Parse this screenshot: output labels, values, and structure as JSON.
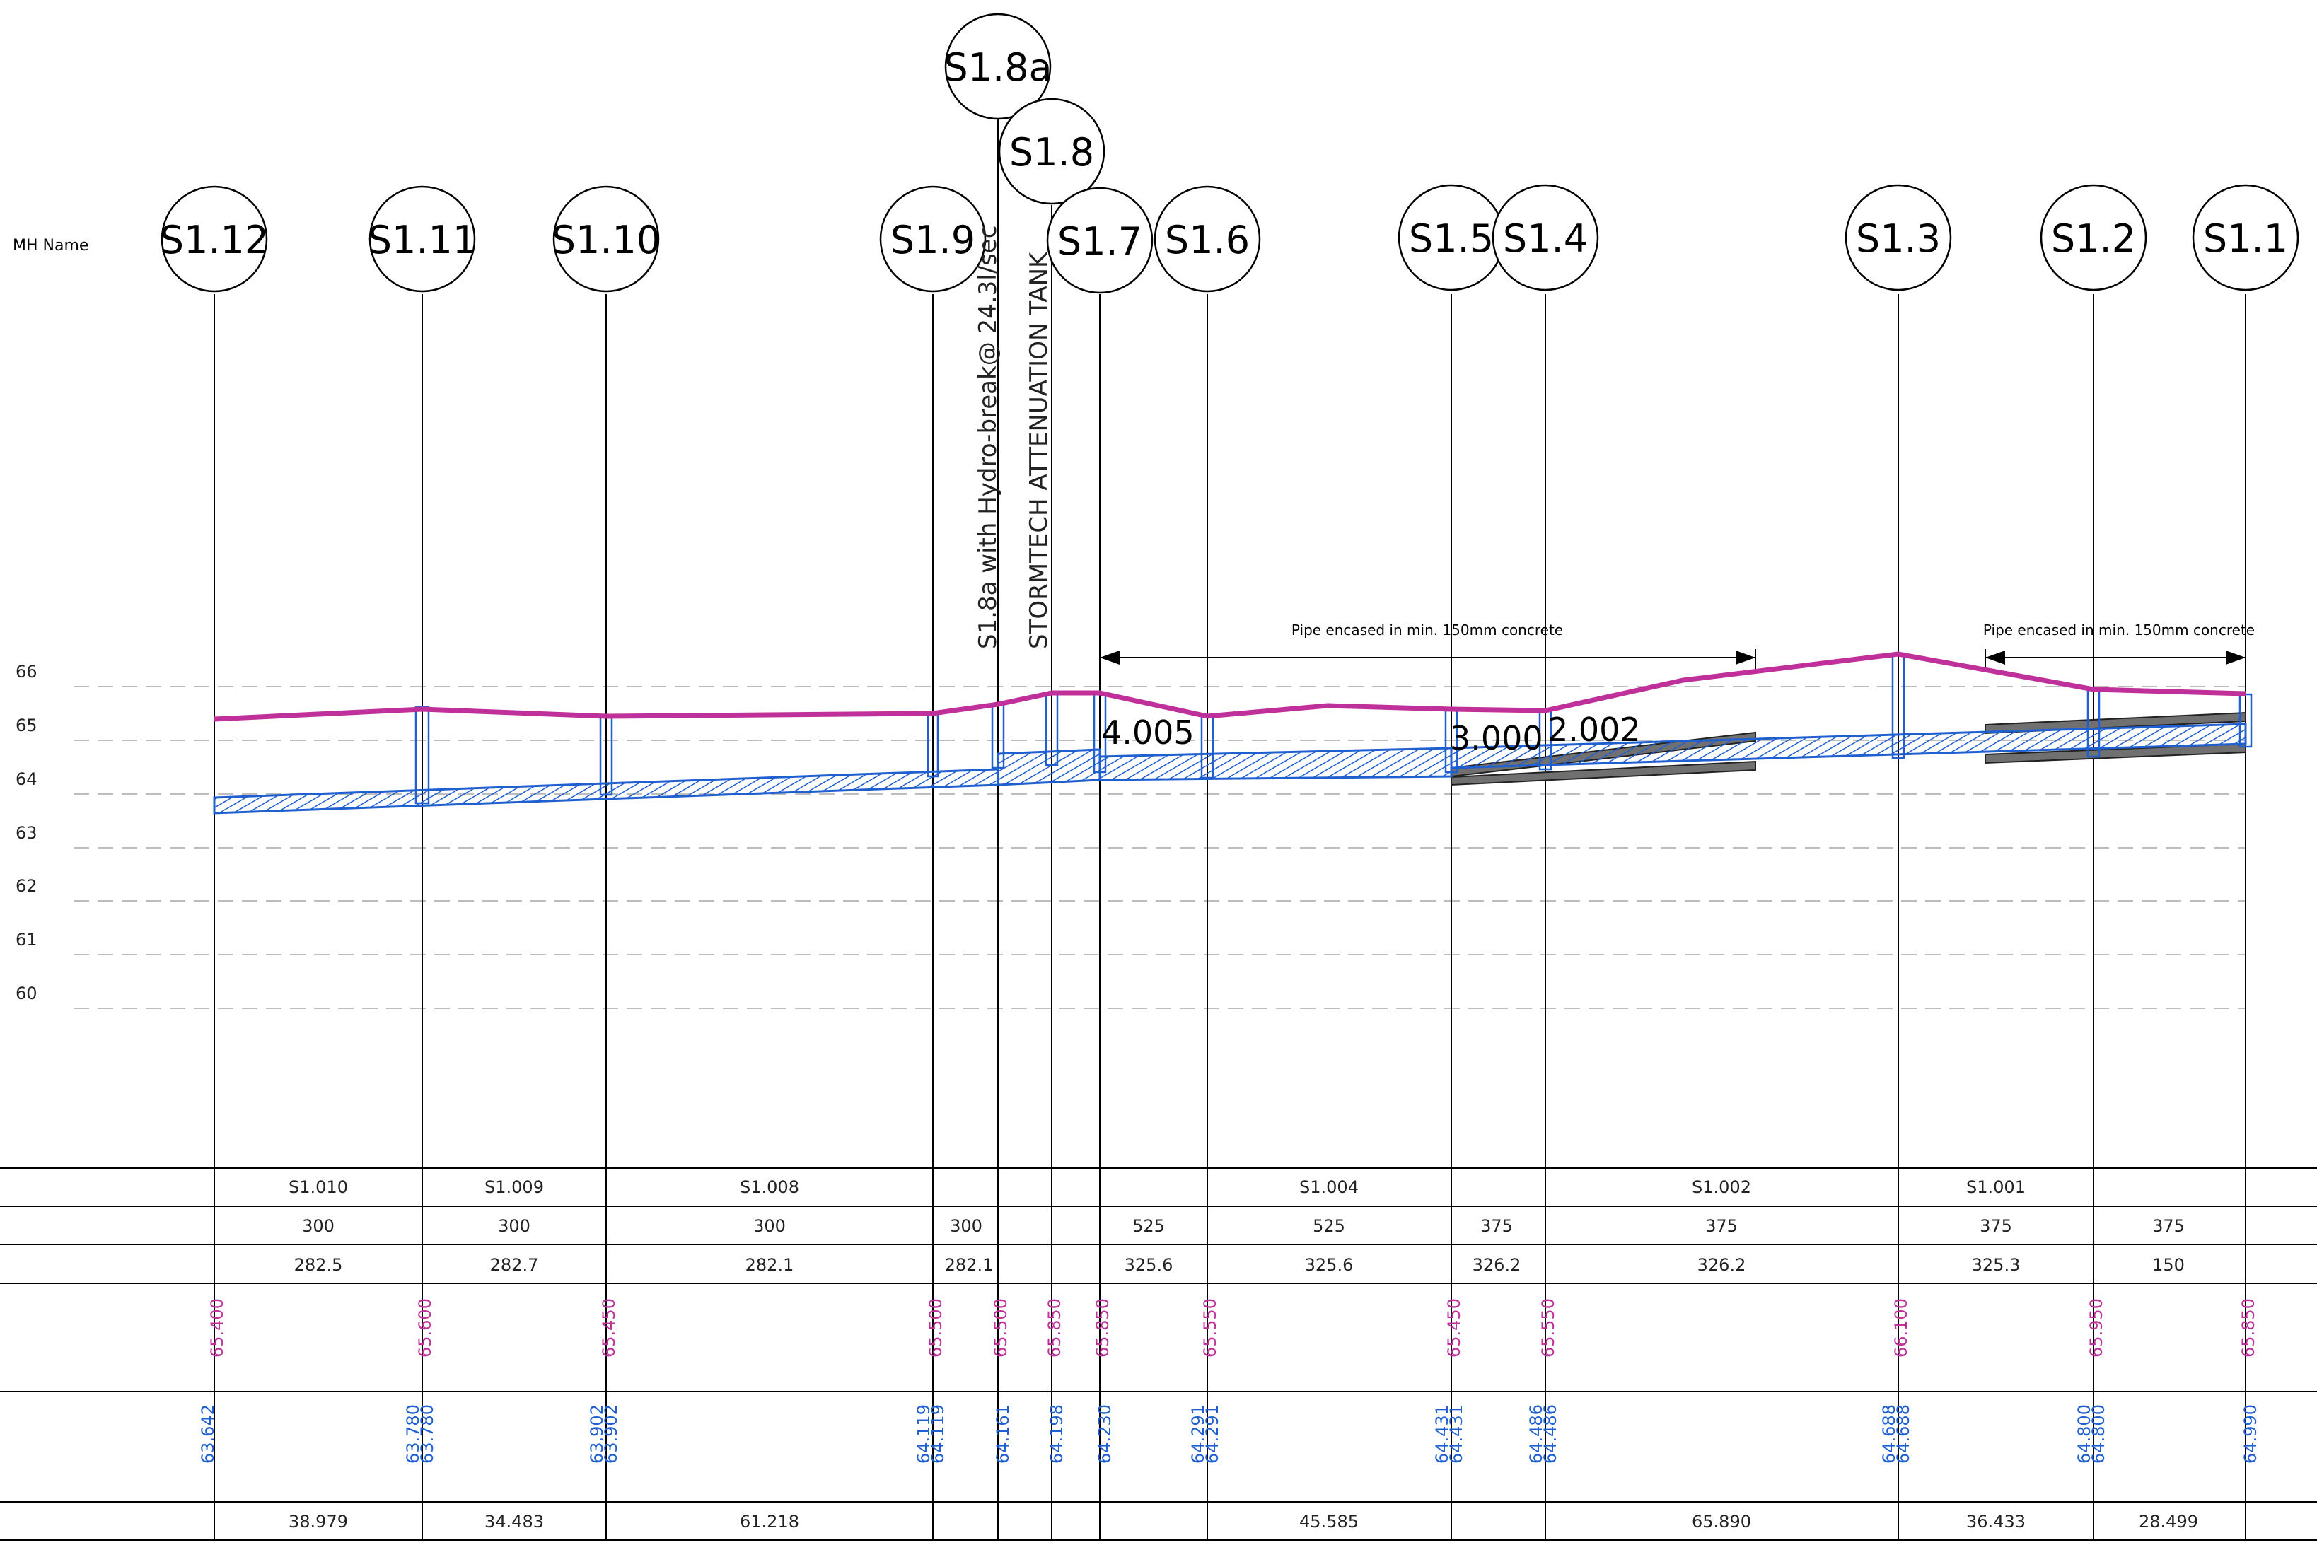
{
  "header": {
    "mh_name_label": "MH  Name"
  },
  "manholes": [
    {
      "name": "S1.12",
      "cover": "65.400",
      "inverts": [
        "63.642"
      ]
    },
    {
      "name": "S1.11",
      "cover": "65.600",
      "inverts": [
        "63.780",
        "63.780"
      ]
    },
    {
      "name": "S1.10",
      "cover": "65.450",
      "inverts": [
        "63.902",
        "63.902"
      ]
    },
    {
      "name": "S1.9",
      "cover": "65.500",
      "inverts": [
        "64.119",
        "64.119"
      ]
    },
    {
      "name": "S1.8a",
      "cover": "65.500",
      "inverts": [
        "64.161"
      ]
    },
    {
      "name": "S1.8",
      "cover": "65.850",
      "inverts": [
        "64.198"
      ]
    },
    {
      "name": "S1.7",
      "cover": "65.850",
      "inverts": [
        "64.230"
      ]
    },
    {
      "name": "S1.6",
      "cover": "65.550",
      "inverts": [
        "64.291",
        "64.291"
      ]
    },
    {
      "name": "S1.5",
      "cover": "65.450",
      "inverts": [
        "64.431",
        "64.431"
      ]
    },
    {
      "name": "S1.4",
      "cover": "65.550",
      "inverts": [
        "64.486",
        "64.486"
      ]
    },
    {
      "name": "S1.3",
      "cover": "66.100",
      "inverts": [
        "64.688",
        "64.688"
      ]
    },
    {
      "name": "S1.2",
      "cover": "65.950",
      "inverts": [
        "64.800",
        "64.800"
      ]
    },
    {
      "name": "S1.1",
      "cover": "65.850",
      "inverts": [
        "64.990"
      ]
    }
  ],
  "levels": [
    "66",
    "65",
    "64",
    "63",
    "62",
    "61",
    "60"
  ],
  "annotations": {
    "hydrobrake": "S1.8a with Hydro-break@ 24.3l/sec",
    "tank": "STORMTECH ATTENUATION TANK",
    "encased_1": "Pipe encased in min. 150mm concrete",
    "encased_2": "Pipe encased in min. 150mm concrete",
    "pipe_label_1": "4.005",
    "pipe_label_2": "3.000",
    "pipe_label_3": "2.002"
  },
  "table": {
    "pipe_refs": [
      "S1.010",
      "S1.009",
      "S1.008",
      "S1.004",
      "S1.002",
      "S1.001"
    ],
    "diameters": [
      "300",
      "300",
      "300",
      "300",
      "525",
      "525",
      "375",
      "375",
      "375",
      "375"
    ],
    "gradients": [
      "282.5",
      "282.7",
      "282.1",
      "282.1",
      "325.6",
      "325.6",
      "326.2",
      "326.2",
      "325.3",
      "150"
    ],
    "lengths": [
      "38.979",
      "34.483",
      "61.218",
      "45.585",
      "65.890",
      "36.433",
      "28.499"
    ]
  },
  "colors": {
    "ground": "#c0309a",
    "pipe": "#1f5fd0",
    "line": "#000000",
    "grid": "#bdbdbd",
    "concrete": "#707070"
  }
}
